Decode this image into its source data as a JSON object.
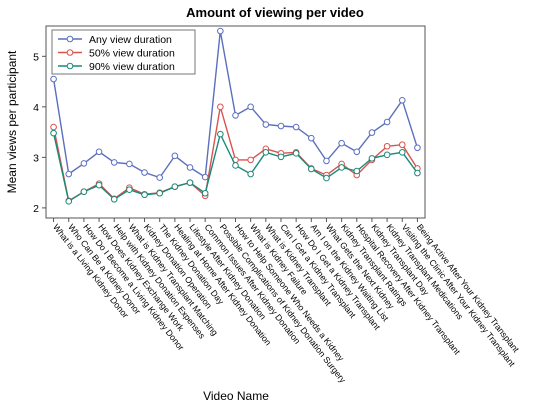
{
  "chart_data": {
    "type": "line",
    "title": "Amount of viewing per video",
    "xlabel": "Video Name",
    "ylabel": "Mean views per participant",
    "ylim": [
      1.8,
      5.6
    ],
    "yticks": [
      2,
      3,
      4,
      5
    ],
    "legend_position": "top-left",
    "grid": false,
    "categories": [
      "What is a Living Kidney Donor",
      "Who Can Be a Kidney Donor",
      "How Do I Become a Living Kidney Donor",
      "How Does Kidney Exchange Work",
      "Help with Kidney Donation Expenses",
      "What is Kidney Transplant Matching",
      "Kidney Donation Operation",
      "The Kidney Donation Day",
      "Healing at Home After Kidney Donation",
      "Lifestyle After Kidney Donation",
      "Common Issues After Kidney Donation",
      "Possible Complications of Kidney Donation Surgery",
      "How to Help Someone Who Needs a Kidney",
      "What is Kidney Failure",
      "What is Kidney Transplant",
      "Can I Get a Kidney Transplant",
      "How Do I Get a Kidney Transplant",
      "Am I on the Kidney Waiting List",
      "What Gets the Next Kidney",
      "Kidney Transplant Ratings",
      "Hospital Recovery After Kidney Transplant",
      "Kidney Transplant Day",
      "Kidney Transplant Medications",
      "Visiting the Clinic After Your Kidney Transplant",
      "Being Active After Your Kidney Transplant"
    ],
    "series": [
      {
        "name": "Any view duration",
        "color": "#5b6fbf",
        "values": [
          4.55,
          2.67,
          2.88,
          3.11,
          2.9,
          2.87,
          2.7,
          2.6,
          3.03,
          2.8,
          2.61,
          5.5,
          3.83,
          4.0,
          3.65,
          3.62,
          3.6,
          3.38,
          2.93,
          3.28,
          3.11,
          3.49,
          3.7,
          4.13,
          3.19
        ]
      },
      {
        "name": "50% view duration",
        "color": "#d9534f",
        "values": [
          3.6,
          2.14,
          2.32,
          2.48,
          2.18,
          2.4,
          2.27,
          2.3,
          2.42,
          2.5,
          2.24,
          4.0,
          2.95,
          2.95,
          3.17,
          3.08,
          3.1,
          2.78,
          2.65,
          2.87,
          2.65,
          2.95,
          3.22,
          3.25,
          2.78
        ]
      },
      {
        "name": "90% view duration",
        "color": "#1a8a78",
        "values": [
          3.48,
          2.13,
          2.32,
          2.45,
          2.17,
          2.36,
          2.26,
          2.29,
          2.42,
          2.5,
          2.29,
          3.46,
          2.84,
          2.67,
          3.1,
          3.01,
          3.08,
          2.77,
          2.59,
          2.8,
          2.73,
          2.98,
          3.05,
          3.1,
          2.69
        ]
      }
    ]
  }
}
